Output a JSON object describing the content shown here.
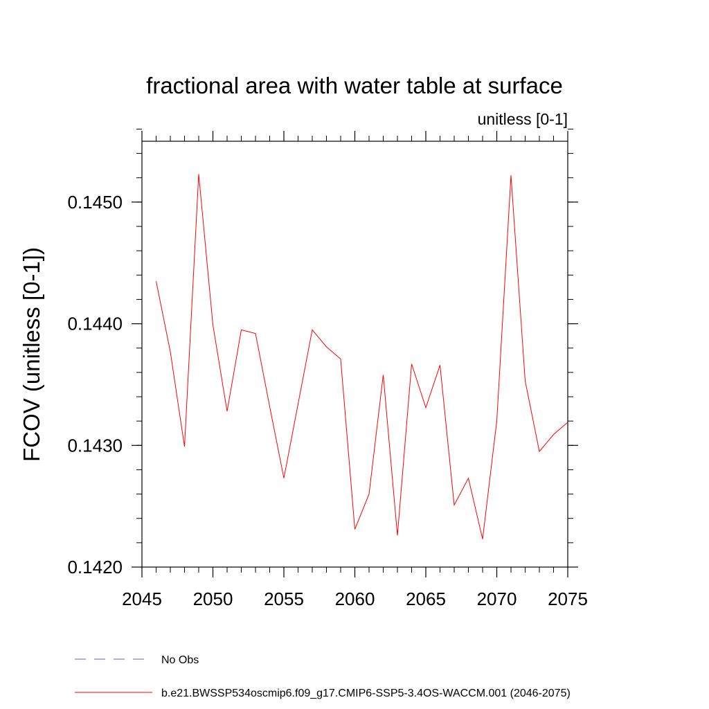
{
  "chart_data": {
    "type": "line",
    "title": "fractional area with water table at surface",
    "subtitle": "unitless [0-1]",
    "xlabel": "",
    "ylabel": "FCOV  (unitless [0-1])",
    "xlim": [
      2045,
      2075
    ],
    "ylim": [
      0.142,
      0.1455
    ],
    "x_ticks": [
      2045,
      2050,
      2055,
      2060,
      2065,
      2070,
      2075
    ],
    "y_ticks": [
      0.142,
      0.143,
      0.144,
      0.145
    ],
    "y_tick_labels": [
      "0.1420",
      "0.1430",
      "0.1440",
      "0.1450"
    ],
    "y_minor_step": 0.0002,
    "x_minor_step": 1,
    "grid": false,
    "series": [
      {
        "name": "b.e21.BWSSP534oscmip6.f09_g17.CMIP6-SSP5-3.4OS-WACCM.001 (2046-2075)",
        "color": "#ff0000",
        "style": "solid",
        "x": [
          2046,
          2047,
          2048,
          2049,
          2050,
          2051,
          2052,
          2053,
          2054,
          2055,
          2056,
          2057,
          2058,
          2059,
          2060,
          2061,
          2062,
          2063,
          2064,
          2065,
          2066,
          2067,
          2068,
          2069,
          2070,
          2071,
          2072,
          2073,
          2074,
          2075
        ],
        "values": [
          0.14435,
          0.14377,
          0.14299,
          0.14523,
          0.14399,
          0.14328,
          0.14395,
          0.14392,
          0.14332,
          0.14273,
          0.14334,
          0.14395,
          0.14381,
          0.14371,
          0.14231,
          0.1426,
          0.14358,
          0.14226,
          0.14367,
          0.14331,
          0.14366,
          0.14251,
          0.14273,
          0.14223,
          0.1432,
          0.14522,
          0.14353,
          0.14295,
          0.14309,
          0.14319
        ]
      }
    ],
    "legend": [
      {
        "label": "No Obs",
        "color": "#6a5acd",
        "style": "dashed"
      },
      {
        "label": "b.e21.BWSSP534oscmip6.f09_g17.CMIP6-SSP5-3.4OS-WACCM.001 (2046-2075)",
        "color": "#ff0000",
        "style": "solid"
      }
    ],
    "legend_position": "bottom-left"
  }
}
